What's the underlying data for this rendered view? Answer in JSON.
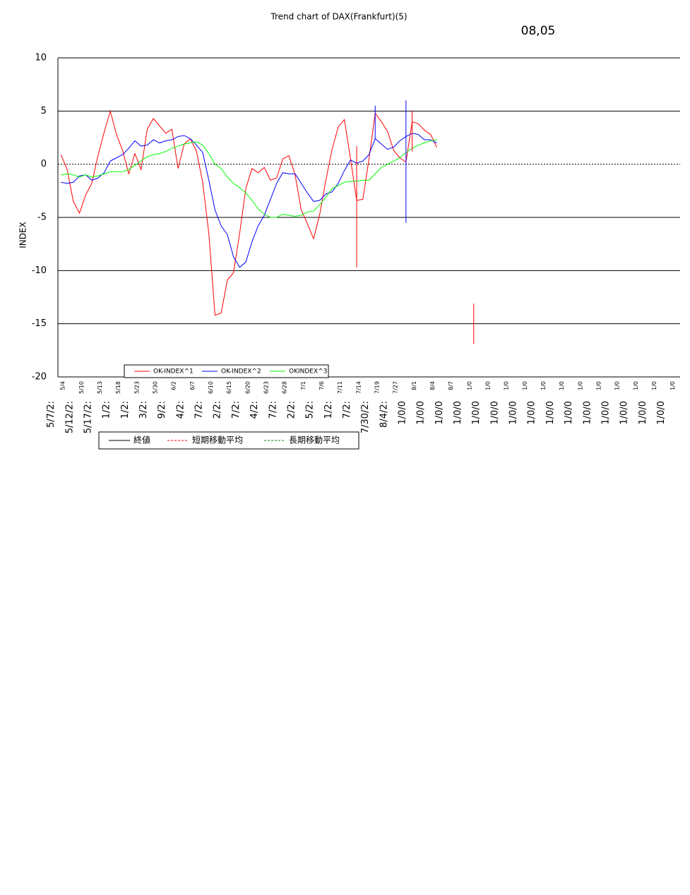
{
  "chart_data": [
    {
      "type": "line",
      "title": "Trend chart of DAX(Frankfurt)(5)",
      "annotation": "08,05",
      "y_label": "INDEX",
      "ylim": [
        -20,
        10
      ],
      "yticks": [
        -20,
        -15,
        -10,
        -5,
        0,
        5,
        10
      ],
      "grid": true,
      "legend": "bottom-left",
      "categories": [
        "5/4",
        null,
        null,
        "5/10",
        null,
        null,
        "5/13",
        null,
        null,
        "5/18",
        null,
        null,
        "5/23",
        null,
        null,
        "5/30",
        null,
        null,
        "6/2",
        null,
        null,
        "6/7",
        null,
        null,
        "6/10",
        null,
        null,
        "6/15",
        null,
        null,
        "6/20",
        null,
        null,
        "6/23",
        null,
        null,
        "6/28",
        null,
        null,
        "7/1",
        null,
        null,
        "7/6",
        null,
        null,
        "7/11",
        null,
        null,
        "7/14",
        null,
        null,
        "7/19",
        null,
        null,
        "7/27",
        null,
        null,
        "8/1",
        null,
        null,
        "8/4",
        null,
        null,
        "8/7",
        null,
        null,
        "1/0",
        null,
        null,
        "1/0",
        null,
        null,
        "1/0",
        null,
        null,
        "1/0",
        null,
        null,
        "1/0",
        null,
        null,
        "1/0",
        null,
        null,
        "1/0",
        null,
        null,
        "1/0",
        null,
        null,
        "1/0",
        null,
        null,
        "1/0",
        null,
        null,
        "1/0",
        null,
        null,
        "1/0",
        null
      ],
      "series": [
        {
          "name": "OK-INDEX^1",
          "color": "#ff0000",
          "values": [
            0.9,
            -0.5,
            -3.5,
            -4.6,
            -2.9,
            -1.8,
            0.8,
            3.0,
            5.0,
            2.8,
            1.3,
            -0.9,
            1.0,
            -0.5,
            3.3,
            4.3,
            3.6,
            2.9,
            3.3,
            -0.4,
            1.9,
            2.4,
            1.2,
            -1.7,
            -6.5,
            -14.2,
            -14.0,
            -10.9,
            -10.2,
            -6.5,
            -2.3,
            -0.4,
            -0.8,
            -0.3,
            -1.5,
            -1.3,
            0.5,
            0.8,
            -1.0,
            -4.3,
            -5.6,
            -7.0,
            -4.7,
            -1.5,
            1.4,
            3.5,
            4.2,
            0.5,
            -3.4,
            -3.3,
            0.5,
            4.8,
            4.0,
            3.1,
            1.3,
            0.6,
            0.2,
            4.0,
            3.8,
            3.2,
            2.8,
            1.6,
            null,
            null,
            null,
            null,
            null,
            null,
            null,
            null,
            null,
            null,
            null,
            null,
            null,
            null,
            null,
            null,
            null,
            null,
            null,
            null,
            null,
            null,
            null,
            null,
            null,
            null,
            null,
            null,
            null,
            null,
            null,
            null,
            null,
            null,
            null,
            null,
            null,
            null,
            null
          ]
        },
        {
          "name": "OK-INDEX^2",
          "color": "#0000ff",
          "values": [
            -1.7,
            -1.8,
            -1.7,
            -1.1,
            -1.0,
            -1.5,
            -1.3,
            -0.8,
            0.3,
            0.6,
            0.9,
            1.5,
            2.2,
            1.7,
            1.8,
            2.3,
            2.0,
            2.2,
            2.3,
            2.6,
            2.7,
            2.4,
            1.8,
            1.1,
            -1.5,
            -4.3,
            -5.8,
            -6.6,
            -8.7,
            -9.7,
            -9.2,
            -7.3,
            -5.8,
            -4.8,
            -3.3,
            -1.8,
            -0.8,
            -0.9,
            -0.9,
            -1.8,
            -2.7,
            -3.5,
            -3.4,
            -2.8,
            -2.6,
            -1.8,
            -0.6,
            0.4,
            0.1,
            0.3,
            0.9,
            2.4,
            1.9,
            1.4,
            1.6,
            2.2,
            2.6,
            2.9,
            2.8,
            2.3,
            2.3,
            2.0,
            null,
            null,
            null,
            null,
            null,
            null,
            null,
            null,
            null,
            null,
            null,
            null,
            null,
            null,
            null,
            null,
            null,
            null,
            null,
            null,
            null,
            null,
            null,
            null,
            null,
            null,
            null,
            null,
            null,
            null,
            null,
            null,
            null,
            null,
            null,
            null,
            null,
            null,
            null
          ]
        },
        {
          "name": "OKINDEX^3",
          "color": "#00ff00",
          "values": [
            -1.0,
            -0.9,
            -1.0,
            -1.2,
            -1.0,
            -1.2,
            -1.1,
            -0.9,
            -0.7,
            -0.7,
            -0.7,
            -0.5,
            -0.1,
            0.3,
            0.7,
            0.9,
            1.0,
            1.2,
            1.5,
            1.7,
            1.9,
            2.0,
            2.1,
            1.8,
            1.0,
            0.0,
            -0.4,
            -1.2,
            -1.8,
            -2.2,
            -2.7,
            -3.4,
            -4.2,
            -4.7,
            -5.0,
            -5.0,
            -4.7,
            -4.8,
            -4.9,
            -4.8,
            -4.5,
            -4.4,
            -3.8,
            -3.1,
            -2.3,
            -2.0,
            -1.7,
            -1.6,
            -1.6,
            -1.5,
            -1.5,
            -0.9,
            -0.3,
            0.0,
            0.3,
            0.6,
            1.1,
            1.5,
            1.8,
            2.0,
            2.2,
            2.3,
            null,
            null,
            null,
            null,
            null,
            null,
            null,
            null,
            null,
            null,
            null,
            null,
            null,
            null,
            null,
            null,
            null,
            null,
            null,
            null,
            null,
            null,
            null,
            null,
            null,
            null,
            null,
            null,
            null,
            null,
            null,
            null,
            null,
            null,
            null,
            null,
            null,
            null,
            null
          ]
        }
      ],
      "ranges": [
        {
          "index": 48,
          "low": -9.7,
          "high": 1.7,
          "color": "#ff0000"
        },
        {
          "index": 51,
          "low": 2.4,
          "high": 5.5,
          "color": "#0000ff"
        },
        {
          "index": 56,
          "low": -5.5,
          "high": 6.0,
          "color": "#0000ff"
        },
        {
          "index": 57,
          "low": 1.2,
          "high": 5.0,
          "color": "#ff0000"
        },
        {
          "index": 67,
          "low": -16.9,
          "high": -13.1,
          "color": "#ff0000"
        }
      ]
    },
    {
      "type": "line",
      "legend": "bottom",
      "categories": [
        "5/7/2:",
        "5/12/2:",
        "5/17/2:",
        "1/2:",
        "1/2:",
        "3/2:",
        "9/2:",
        "4/2:",
        "7/2:",
        "2/2:",
        "7/2:",
        "4/2:",
        "7/2:",
        "2/2:",
        "5/2:",
        "1/2:",
        "7/2:",
        "7/30/2:",
        "8/4/2:",
        "1/0/0",
        "1/0/0",
        "1/0/0",
        "1/0/0",
        "1/0/0",
        "1/0/0",
        "1/0/0",
        "1/0/0",
        "1/0/0",
        "1/0/0",
        "1/0/0",
        "1/0/0",
        "1/0/0",
        "1/0/0",
        "1/0/0"
      ],
      "series": [
        {
          "name": "終値",
          "color": "#000000",
          "dash": false,
          "values": [
            null,
            null,
            null,
            null,
            null,
            null,
            null,
            null,
            null,
            null,
            null,
            null,
            null,
            null,
            null,
            null,
            null,
            null,
            null,
            null,
            null,
            null,
            null,
            null,
            null,
            null,
            null,
            null,
            null,
            null,
            null,
            null,
            null,
            null
          ]
        },
        {
          "name": "短期移動平均",
          "color": "#ff0000",
          "dash": true,
          "values": [
            null,
            null,
            null,
            null,
            null,
            null,
            null,
            null,
            null,
            null,
            null,
            null,
            null,
            null,
            null,
            null,
            null,
            null,
            null,
            null,
            null,
            null,
            null,
            null,
            null,
            null,
            null,
            null,
            null,
            null,
            null,
            null,
            null,
            null
          ]
        },
        {
          "name": "長期移動平均",
          "color": "#008000",
          "dash": true,
          "values": [
            null,
            null,
            null,
            null,
            null,
            null,
            null,
            null,
            null,
            null,
            null,
            null,
            null,
            null,
            null,
            null,
            null,
            null,
            null,
            null,
            null,
            null,
            null,
            null,
            null,
            null,
            null,
            null,
            null,
            null,
            null,
            null,
            null,
            null
          ]
        }
      ]
    }
  ]
}
